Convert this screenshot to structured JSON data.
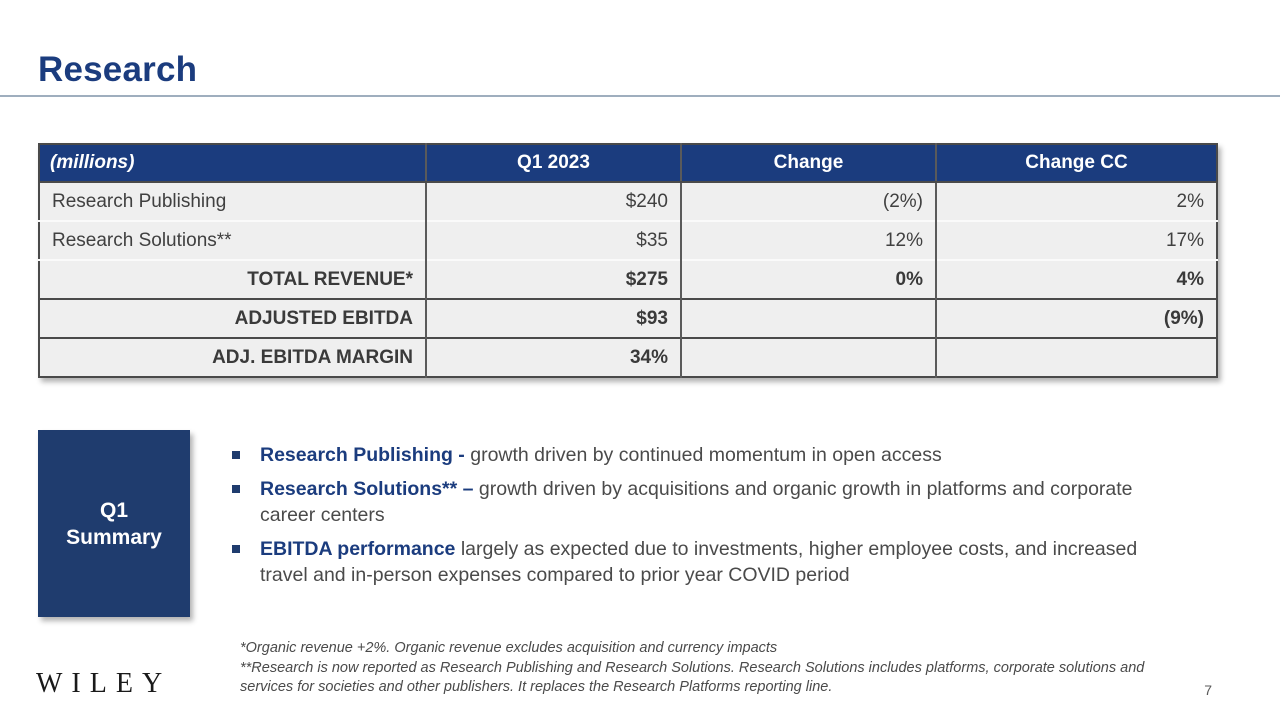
{
  "slide": {
    "title": "Research",
    "logo_text": "WILEY",
    "page_number": "7"
  },
  "table": {
    "columns": {
      "c1": "(millions)",
      "c2": "Q1 2023",
      "c3": "Change",
      "c4": "Change CC"
    },
    "rows": [
      {
        "label": "Research Publishing",
        "q1_2023": "$240",
        "change": "(2%)",
        "change_cc": "2%"
      },
      {
        "label": "Research Solutions**",
        "q1_2023": "$35",
        "change": "12%",
        "change_cc": "17%"
      },
      {
        "label": "TOTAL REVENUE*",
        "q1_2023": "$275",
        "change": "0%",
        "change_cc": "4%"
      },
      {
        "label": "ADJUSTED EBITDA",
        "q1_2023": "$93",
        "change": "",
        "change_cc": "(9%)"
      },
      {
        "label": "ADJ. EBITDA MARGIN",
        "q1_2023": "34%",
        "change": "",
        "change_cc": ""
      }
    ]
  },
  "summary": {
    "box_line1": "Q1",
    "box_line2": "Summary",
    "bullets": [
      {
        "lead": "Research Publishing -",
        "text": " growth driven by continued momentum in open access"
      },
      {
        "lead": "Research Solutions** –",
        "text": " growth driven by acquisitions and organic growth in platforms and corporate career centers"
      },
      {
        "lead": "EBITDA performance",
        "text": " largely as expected due to investments, higher employee costs, and increased travel and in-person expenses compared to prior year COVID period"
      }
    ]
  },
  "footnotes": {
    "line1": "*Organic revenue +2%. Organic revenue excludes acquisition and currency impacts",
    "line2": "**Research is now reported as Research Publishing and Research Solutions.  Research Solutions includes platforms, corporate solutions and services for societies and other publishers.  It replaces the Research Platforms reporting line."
  },
  "colors": {
    "navy_header": "#1B3C7E",
    "navy_box": "#1F3C6E",
    "row_bg": "#EFEFEF",
    "dark_border": "#4A4A4A",
    "body_text": "#404040"
  }
}
